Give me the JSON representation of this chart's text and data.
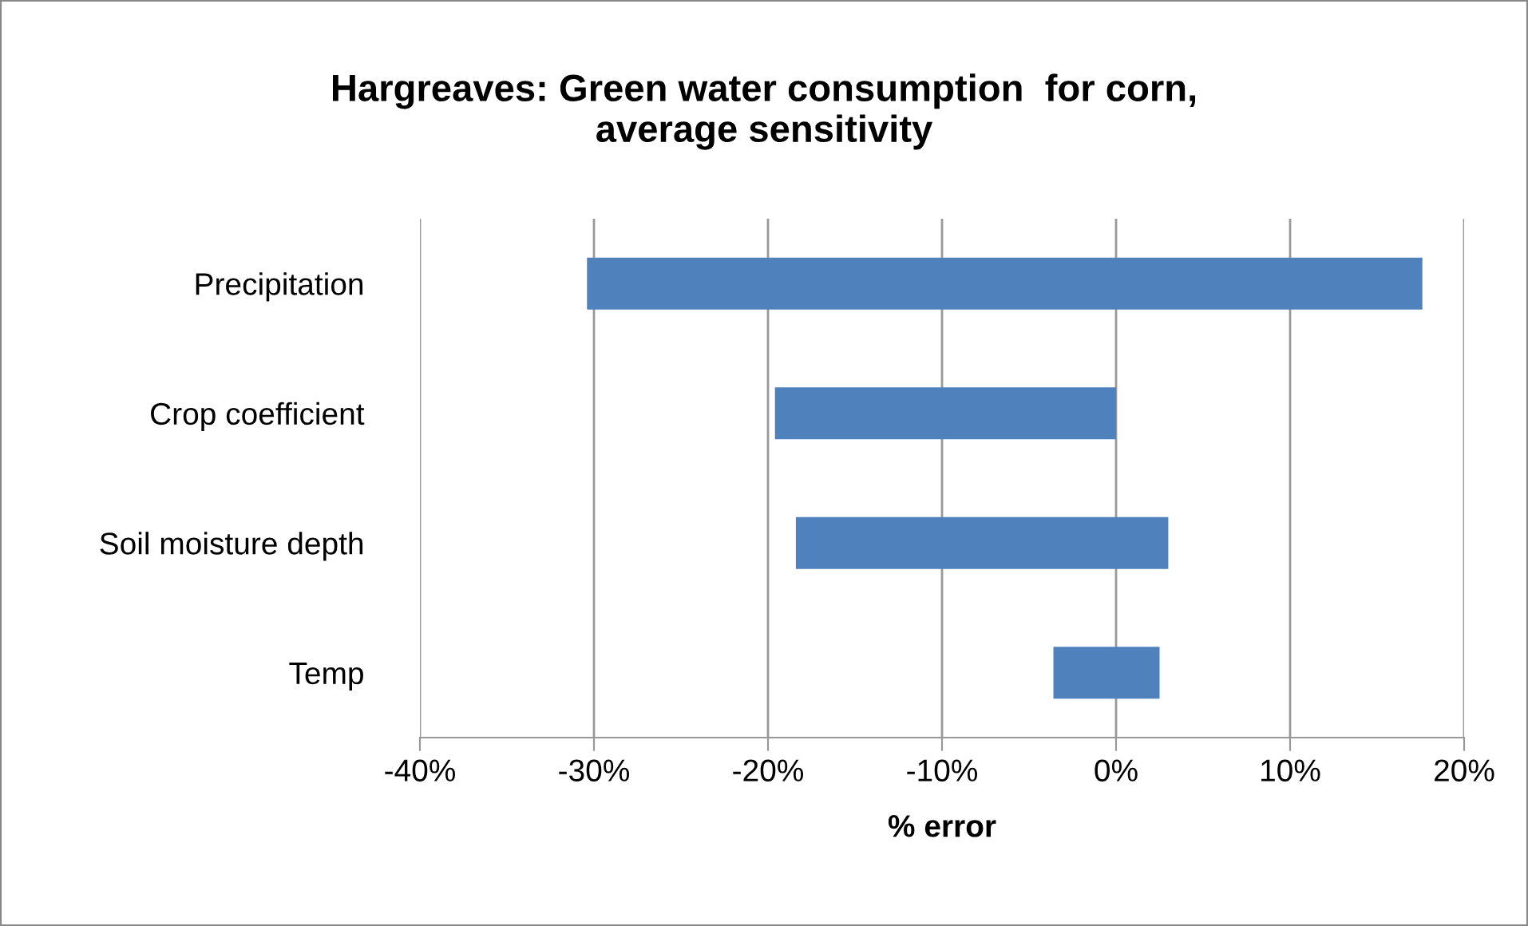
{
  "chart_data": {
    "type": "bar",
    "orientation": "horizontal",
    "title": "Hargreaves: Green water consumption  for corn,\naverage sensitivity",
    "xlabel": "% error",
    "categories": [
      "Precipitation",
      "Crop coefficient",
      "Soil moisture depth",
      "Temp"
    ],
    "base": [
      -30.4,
      -19.6,
      -18.4,
      -3.6
    ],
    "values": [
      48.0,
      19.6,
      21.4,
      6.1
    ],
    "color": "#4f81bd",
    "xlim": [
      -40,
      20
    ],
    "xticks": [
      {
        "value": -40,
        "label": "-40%"
      },
      {
        "value": -30,
        "label": "-30%"
      },
      {
        "value": -20,
        "label": "-20%"
      },
      {
        "value": -10,
        "label": "-10%"
      },
      {
        "value": 0,
        "label": "0%"
      },
      {
        "value": 10,
        "label": "10%"
      },
      {
        "value": 20,
        "label": "20%"
      }
    ],
    "grid": "x",
    "legend": false
  }
}
